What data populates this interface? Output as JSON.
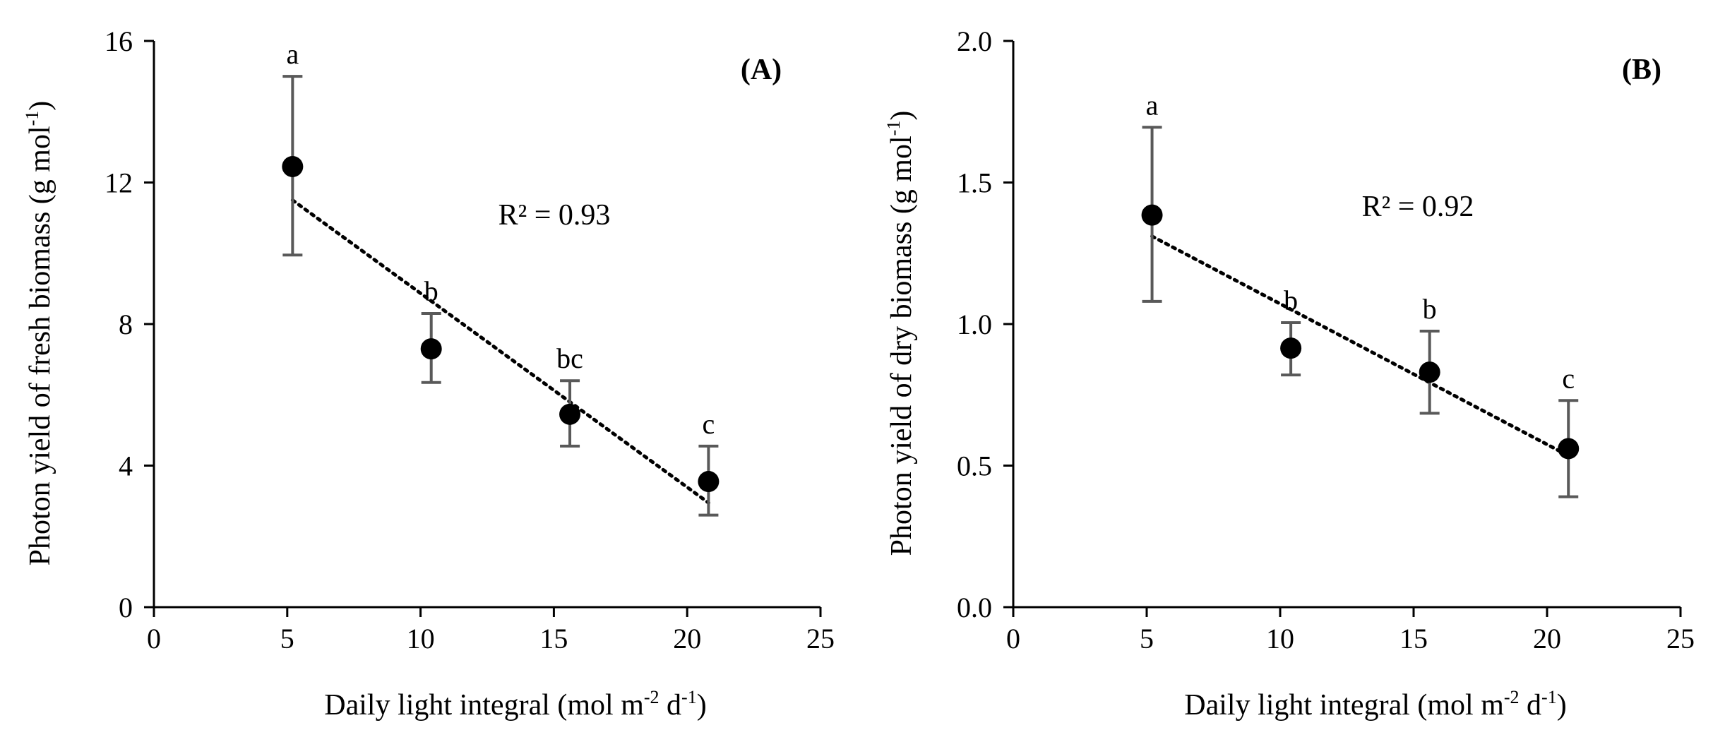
{
  "chart_data": [
    {
      "type": "scatter",
      "panel_label": "(A)",
      "xlabel": {
        "main": "Daily light integral (mol m",
        "sup1": "-2",
        "mid": " d",
        "sup2": "-1",
        "end": ")"
      },
      "ylabel": {
        "main": "Photon yield of fresh biomass (g mol",
        "sup": "-1",
        "end": ")"
      },
      "xlim": [
        0,
        25
      ],
      "ylim": [
        0,
        16
      ],
      "x_ticks": [
        0,
        5,
        10,
        15,
        20,
        25
      ],
      "x_tick_labels": [
        "0",
        "5",
        "10",
        "15",
        "20",
        "25"
      ],
      "y_ticks": [
        0,
        4,
        8,
        12,
        16
      ],
      "y_tick_labels": [
        "0",
        "4",
        "8",
        "12",
        "16"
      ],
      "r2_text": "R² = 0.93",
      "points": [
        {
          "x": 5.2,
          "y": 12.45,
          "err_low": 9.95,
          "err_high": 15.0,
          "letter": "a"
        },
        {
          "x": 10.4,
          "y": 7.3,
          "err_low": 6.35,
          "err_high": 8.3,
          "letter": "b"
        },
        {
          "x": 15.6,
          "y": 5.45,
          "err_low": 4.55,
          "err_high": 6.4,
          "letter": "bc"
        },
        {
          "x": 20.8,
          "y": 3.55,
          "err_low": 2.6,
          "err_high": 4.55,
          "letter": "c"
        }
      ],
      "trendline": {
        "x": [
          5.2,
          20.8
        ],
        "y": [
          11.5,
          2.95
        ]
      }
    },
    {
      "type": "scatter",
      "panel_label": "(B)",
      "xlabel": {
        "main": "Daily light integral (mol m",
        "sup1": "-2",
        "mid": " d",
        "sup2": "-1",
        "end": ")"
      },
      "ylabel": {
        "main": "Photon yield of dry biomass (g mol",
        "sup": "-1",
        "end": ")"
      },
      "xlim": [
        0,
        25
      ],
      "ylim": [
        0,
        2
      ],
      "x_ticks": [
        0,
        5,
        10,
        15,
        20,
        25
      ],
      "x_tick_labels": [
        "0",
        "5",
        "10",
        "15",
        "20",
        "25"
      ],
      "y_ticks": [
        0,
        0.5,
        1.0,
        1.5,
        2.0
      ],
      "y_tick_labels": [
        "0.0",
        "0.5",
        "1.0",
        "1.5",
        "2.0"
      ],
      "r2_text": "R² = 0.92",
      "points": [
        {
          "x": 5.2,
          "y": 1.385,
          "err_low": 1.08,
          "err_high": 1.695,
          "letter": "a"
        },
        {
          "x": 10.4,
          "y": 0.915,
          "err_low": 0.82,
          "err_high": 1.005,
          "letter": "b"
        },
        {
          "x": 15.6,
          "y": 0.83,
          "err_low": 0.685,
          "err_high": 0.975,
          "letter": "b"
        },
        {
          "x": 20.8,
          "y": 0.56,
          "err_low": 0.39,
          "err_high": 0.73,
          "letter": "c"
        }
      ],
      "trendline": {
        "x": [
          5.2,
          20.8
        ],
        "y": [
          1.31,
          0.535
        ]
      }
    }
  ]
}
